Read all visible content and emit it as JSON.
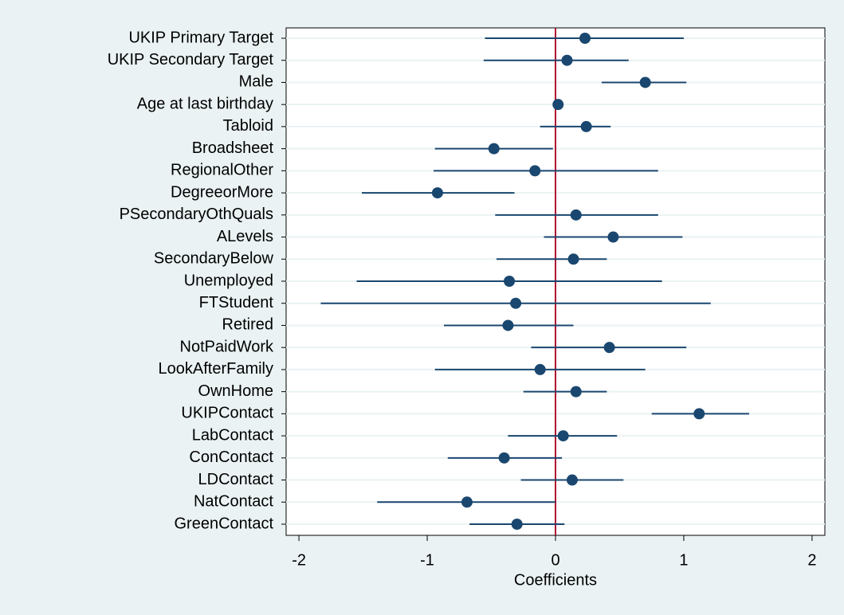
{
  "chart_data": {
    "type": "coefplot",
    "x_label": "Coefficients",
    "categories": [
      "UKIP Primary Target",
      "UKIP Secondary Target",
      "Male",
      "Age at last birthday",
      "Tabloid",
      "Broadsheet",
      "RegionalOther",
      "DegreeorMore",
      "PSecondaryOthQuals",
      "ALevels",
      "SecondaryBelow",
      "Unemployed",
      "FTStudent",
      "Retired",
      "NotPaidWork",
      "LookAfterFamily",
      "OwnHome",
      "UKIPContact",
      "LabContact",
      "ConContact",
      "LDContact",
      "NatContact",
      "GreenContact"
    ],
    "values": [
      0.23,
      0.09,
      0.7,
      0.02,
      0.24,
      -0.48,
      -0.16,
      -0.92,
      0.16,
      0.45,
      0.14,
      -0.36,
      -0.31,
      -0.37,
      0.42,
      -0.12,
      0.16,
      1.12,
      0.06,
      -0.4,
      0.13,
      -0.69,
      -0.3
    ],
    "lower": [
      -0.55,
      -0.56,
      0.36,
      0.0,
      -0.12,
      -0.94,
      -0.95,
      -1.51,
      -0.47,
      -0.09,
      -0.46,
      -1.55,
      -1.83,
      -0.87,
      -0.19,
      -0.94,
      -0.25,
      0.75,
      -0.37,
      -0.84,
      -0.27,
      -1.39,
      -0.67
    ],
    "upper": [
      1.0,
      0.57,
      1.02,
      0.05,
      0.43,
      -0.02,
      0.8,
      -0.32,
      0.8,
      0.99,
      0.4,
      0.83,
      1.21,
      0.14,
      1.02,
      0.7,
      0.4,
      1.51,
      0.48,
      0.05,
      0.53,
      0.0,
      0.07
    ],
    "color": "#1a476f",
    "refline": 0,
    "refline_color": "#b01030",
    "xlim": [
      -2.1,
      2.1
    ],
    "xticks": [
      -2,
      -1,
      0,
      1,
      2
    ],
    "grid": true
  }
}
